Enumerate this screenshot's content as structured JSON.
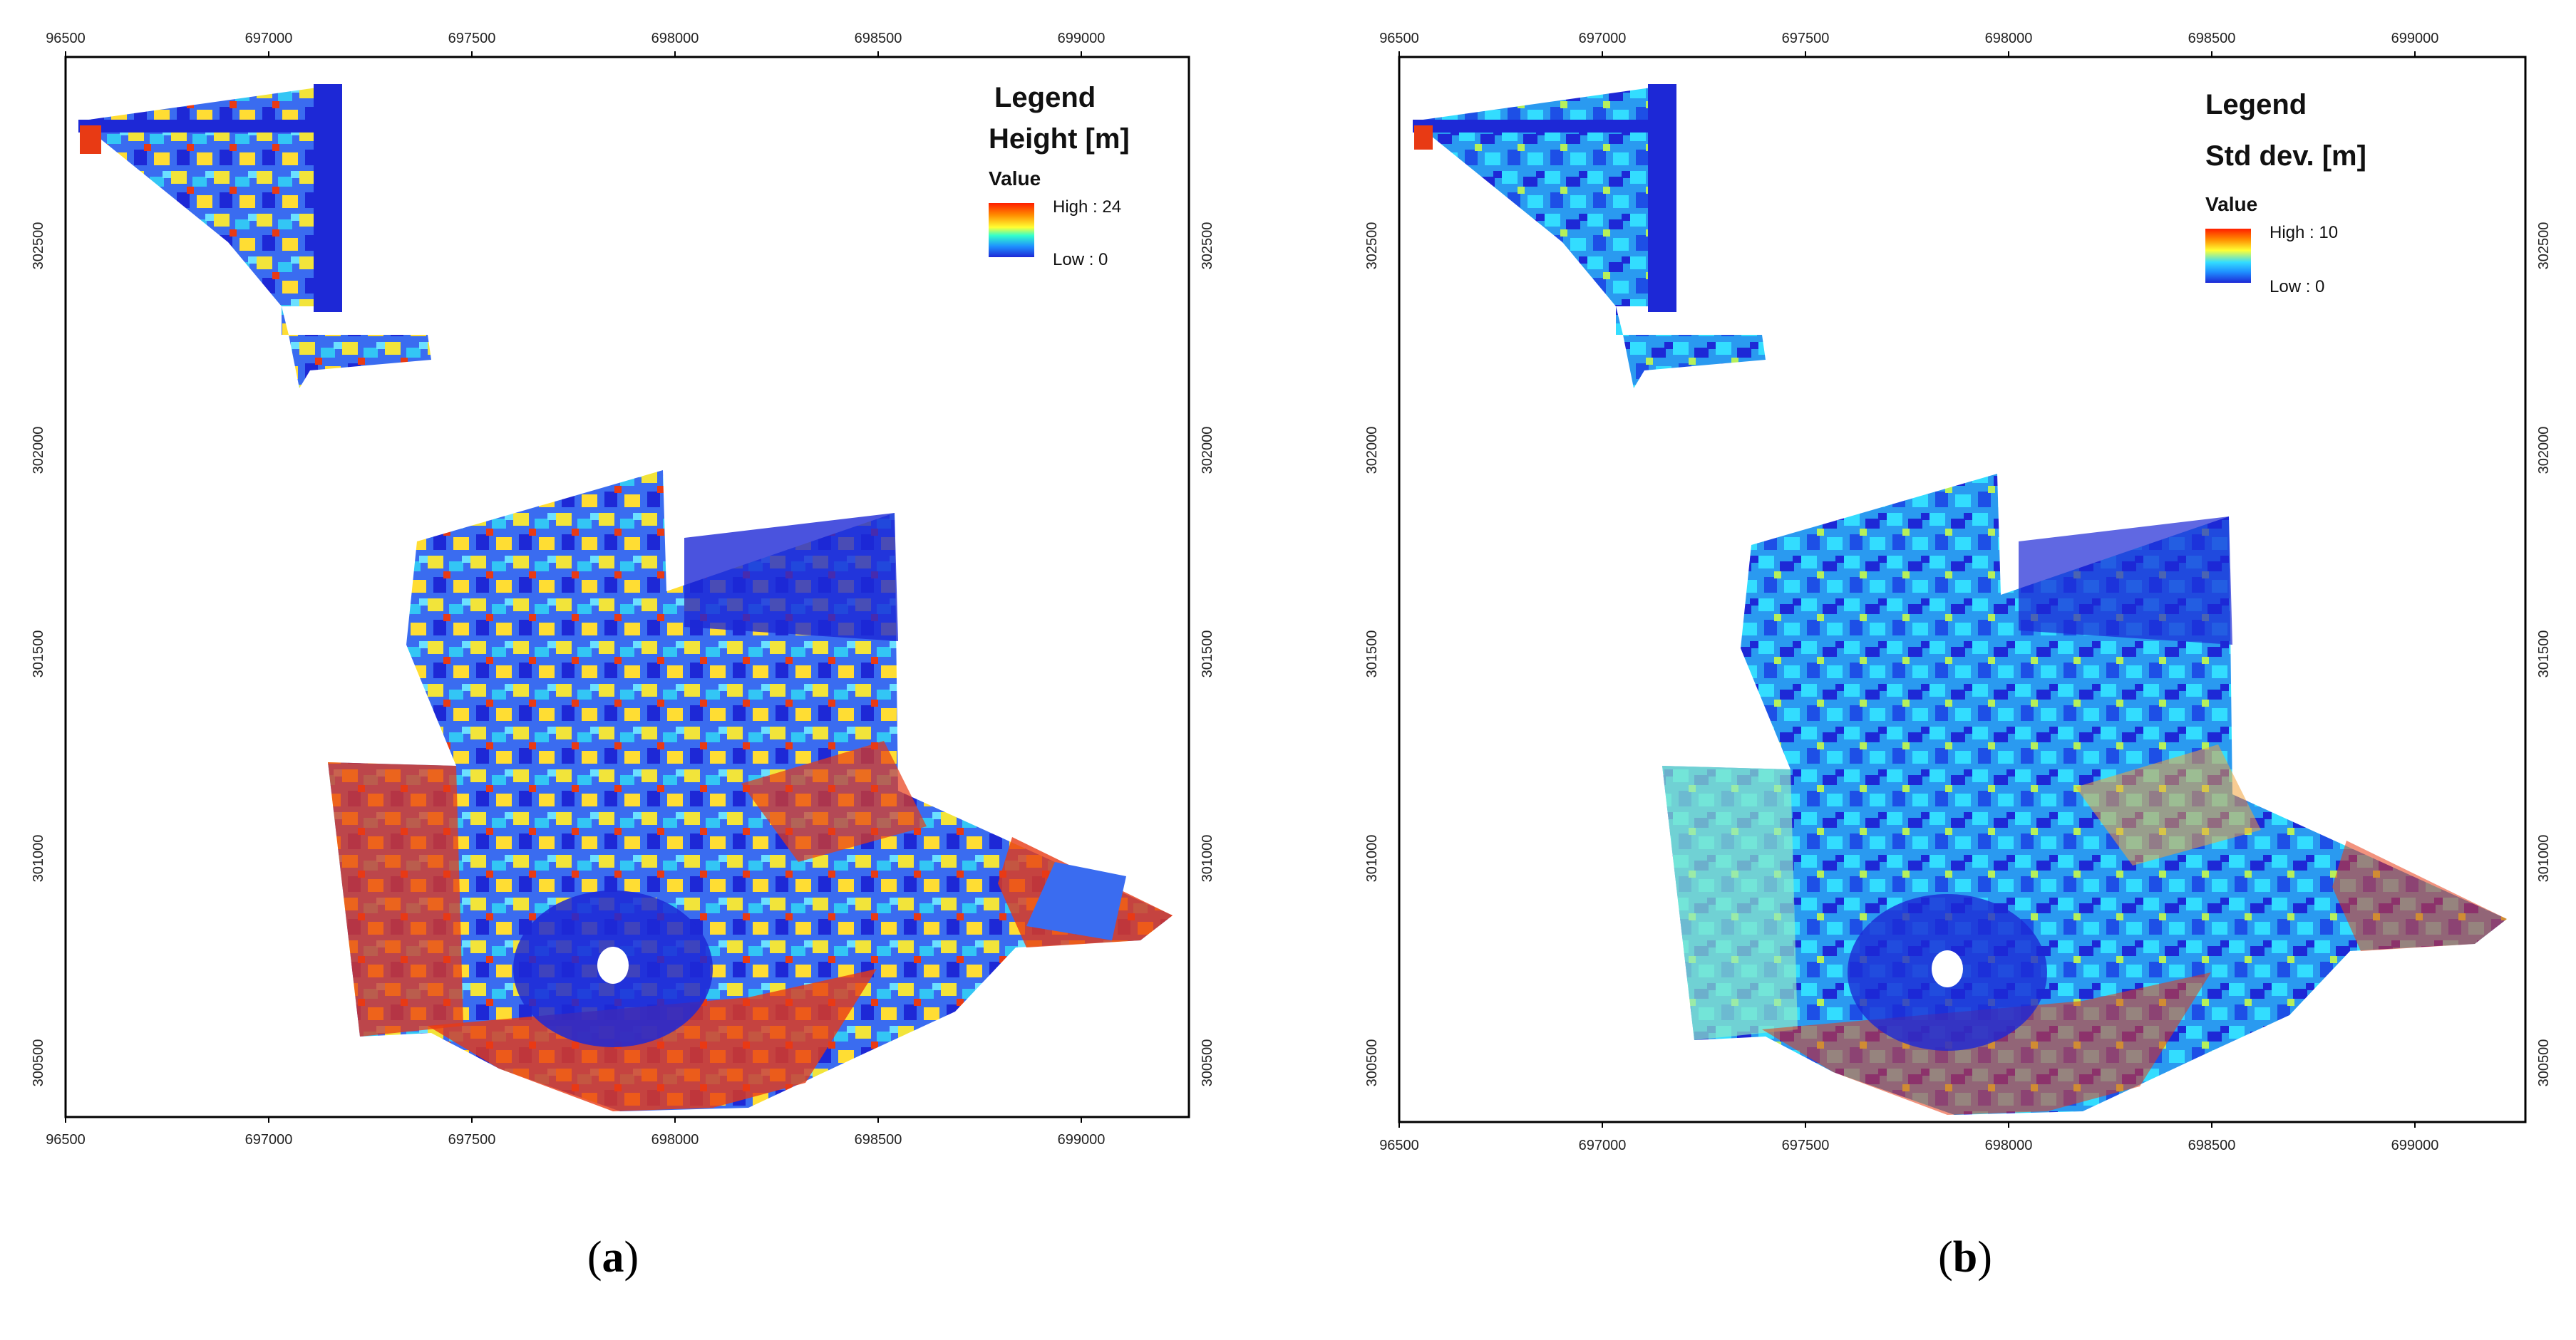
{
  "panels": [
    {
      "id": "a",
      "caption_letter": "a",
      "x_ticks": [
        "96500",
        "697000",
        "697500",
        "698000",
        "698500",
        "699000"
      ],
      "y_ticks": [
        "302500",
        "302000",
        "301500",
        "301000",
        "300500"
      ],
      "legend": {
        "title": "Legend",
        "measure": "Height [m]",
        "value_label": "Value",
        "high_label": "High : 24",
        "low_label": "Low : 0"
      },
      "colors": {
        "frame": "#000000",
        "ramp_high": "#ff1e00",
        "ramp_mid": "#ffff33",
        "ramp_low": "#1d28d6"
      }
    },
    {
      "id": "b",
      "caption_letter": "b",
      "x_ticks": [
        "96500",
        "697000",
        "697500",
        "698000",
        "698500",
        "699000"
      ],
      "y_ticks": [
        "302500",
        "302000",
        "301500",
        "301000",
        "300500"
      ],
      "legend": {
        "title": "Legend",
        "measure": "Std dev. [m]",
        "value_label": "Value",
        "high_label": "High : 10",
        "low_label": "Low : 0"
      },
      "colors": {
        "frame": "#000000",
        "ramp_high": "#ff1e00",
        "ramp_mid": "#33ddff",
        "ramp_low": "#1d28d6"
      }
    }
  ]
}
